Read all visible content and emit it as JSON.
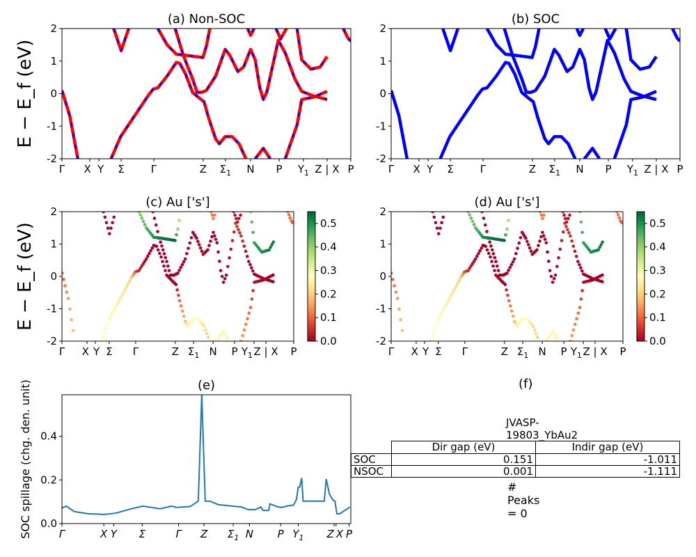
{
  "colors": {
    "nonsoc_line": "#ff0000",
    "nonsoc_dash": "#0000ff",
    "soc_line": "#0000ff",
    "spillage_line": "#1f77b4",
    "colormap": "RdYlGn"
  },
  "chart_data": [
    {
      "id": "a",
      "type": "line",
      "title": "(a) Non-SOC",
      "ylabel": "E − E_f (eV)",
      "ylim": [
        -2,
        2
      ],
      "yticks": [
        -2,
        -1,
        0,
        1,
        2
      ],
      "xticks": [
        {
          "k": 0,
          "label": "Γ"
        },
        {
          "k": 0.096,
          "label": "X"
        },
        {
          "k": 0.128,
          "label": "Y"
        },
        {
          "k": 0.205,
          "label": "Σ"
        },
        {
          "k": 0.318,
          "label": "Γ"
        },
        {
          "k": 0.489,
          "label": "Z"
        },
        {
          "k": 0.566,
          "label": "Σ",
          "sub": "1"
        },
        {
          "k": 0.653,
          "label": "N"
        },
        {
          "k": 0.752,
          "label": "P"
        },
        {
          "k": 0.836,
          "label": "Y",
          "sub": "1"
        },
        {
          "k": 0.918,
          "label": "Z | X"
        },
        {
          "k": 1.0,
          "label": "P"
        }
      ]
    },
    {
      "id": "b",
      "type": "line",
      "title": "(b) SOC",
      "ylim": [
        -2,
        2
      ],
      "yticks": [
        -2,
        -1,
        0,
        1,
        2
      ],
      "xticks": [
        {
          "k": 0,
          "label": "Γ"
        },
        {
          "k": 0.096,
          "label": "X"
        },
        {
          "k": 0.128,
          "label": "Y"
        },
        {
          "k": 0.205,
          "label": "Σ"
        },
        {
          "k": 0.318,
          "label": "Γ"
        },
        {
          "k": 0.489,
          "label": "Z"
        },
        {
          "k": 0.566,
          "label": "Σ",
          "sub": "1"
        },
        {
          "k": 0.653,
          "label": "N"
        },
        {
          "k": 0.752,
          "label": "P"
        },
        {
          "k": 0.836,
          "label": "Y",
          "sub": "1"
        },
        {
          "k": 0.918,
          "label": "Z | X"
        },
        {
          "k": 1.0,
          "label": "P"
        }
      ]
    },
    {
      "id": "c",
      "type": "scatter",
      "title": "(c)  Au ['s']",
      "ylabel": "E − E_f (eV)",
      "ylim": [
        -2,
        2
      ],
      "yticks": [
        -2,
        -1,
        0,
        1,
        2
      ],
      "colorbar": {
        "range": [
          0,
          0.55
        ],
        "ticks": [
          0.0,
          0.1,
          0.2,
          0.3,
          0.4,
          0.5
        ]
      },
      "xticks": [
        {
          "k": 0,
          "label": "Γ"
        },
        {
          "k": 0.108,
          "label": "X"
        },
        {
          "k": 0.144,
          "label": "Y"
        },
        {
          "k": 0.204,
          "label": "Σ"
        },
        {
          "k": 0.318,
          "label": "Γ"
        },
        {
          "k": 0.489,
          "label": "Z"
        },
        {
          "k": 0.568,
          "label": "Σ",
          "sub": "1"
        },
        {
          "k": 0.652,
          "label": "N"
        },
        {
          "k": 0.745,
          "label": "P"
        },
        {
          "k": 0.829,
          "label": "Y",
          "sub": "1"
        },
        {
          "k": 0.88,
          "label": "Z | X"
        },
        {
          "k": 1.0,
          "label": "P"
        }
      ]
    },
    {
      "id": "d",
      "type": "scatter",
      "title": "(d) Au ['s']",
      "ylim": [
        -2,
        2
      ],
      "yticks": [
        -2,
        -1,
        0,
        1,
        2
      ],
      "colorbar": {
        "range": [
          0,
          0.55
        ],
        "ticks": [
          0.0,
          0.1,
          0.2,
          0.3,
          0.4,
          0.5
        ]
      },
      "xticks": [
        {
          "k": 0,
          "label": "Γ"
        },
        {
          "k": 0.108,
          "label": "X"
        },
        {
          "k": 0.144,
          "label": "Y"
        },
        {
          "k": 0.204,
          "label": "Σ"
        },
        {
          "k": 0.318,
          "label": "Γ"
        },
        {
          "k": 0.489,
          "label": "Z"
        },
        {
          "k": 0.568,
          "label": "Σ",
          "sub": "1"
        },
        {
          "k": 0.652,
          "label": "N"
        },
        {
          "k": 0.745,
          "label": "P"
        },
        {
          "k": 0.829,
          "label": "Y",
          "sub": "1"
        },
        {
          "k": 0.88,
          "label": "Z | X"
        },
        {
          "k": 1.0,
          "label": "P"
        }
      ]
    },
    {
      "id": "e",
      "type": "line",
      "title": "(e)",
      "ylabel": "SOC spillage (chg. den. unit)",
      "ylim": [
        0,
        0.59
      ],
      "yticks": [
        0.0,
        0.2,
        0.4
      ],
      "xticks": [
        {
          "k": 0,
          "label": "Γ"
        },
        {
          "k": 0.145,
          "label": "X"
        },
        {
          "k": 0.179,
          "label": "Y"
        },
        {
          "k": 0.278,
          "label": "Σ"
        },
        {
          "k": 0.404,
          "label": "Γ"
        },
        {
          "k": 0.492,
          "label": "Z"
        },
        {
          "k": 0.593,
          "label": "Σ",
          "sub": "1"
        },
        {
          "k": 0.649,
          "label": "N"
        },
        {
          "k": 0.757,
          "label": "P"
        },
        {
          "k": 0.818,
          "label": "Y",
          "sub": "1"
        },
        {
          "k": 0.942,
          "label": "Z"
        },
        {
          "k": 0.949,
          "label": "X"
        },
        {
          "k": 0.994,
          "label": "P"
        }
      ],
      "k": [
        0,
        0.014,
        0.043,
        0.091,
        0.147,
        0.187,
        0.235,
        0.28,
        0.34,
        0.38,
        0.396,
        0.444,
        0.472,
        0.484,
        0.496,
        0.512,
        0.541,
        0.589,
        0.621,
        0.645,
        0.669,
        0.689,
        0.696,
        0.716,
        0.72,
        0.749,
        0.761,
        0.778,
        0.802,
        0.812,
        0.818,
        0.823,
        0.83,
        0.835,
        0.908,
        0.915,
        0.926,
        0.938,
        0.945,
        0.952,
        0.962,
        0.997
      ],
      "values": [
        0.071,
        0.08,
        0.055,
        0.045,
        0.042,
        0.048,
        0.066,
        0.08,
        0.068,
        0.08,
        0.074,
        0.078,
        0.103,
        0.59,
        0.103,
        0.103,
        0.087,
        0.08,
        0.076,
        0.064,
        0.064,
        0.076,
        0.06,
        0.06,
        0.09,
        0.076,
        0.074,
        0.08,
        0.085,
        0.111,
        0.167,
        0.167,
        0.209,
        0.103,
        0.103,
        0.204,
        0.135,
        0.108,
        0.103,
        0.045,
        0.045,
        0.076
      ]
    }
  ],
  "bands": [
    {
      "k": [
        0,
        0.027,
        0.055
      ],
      "E": [
        0.1,
        -0.68,
        -2
      ],
      "w": [
        0.08,
        0.15,
        0.2
      ]
    },
    {
      "k": [
        0.17,
        0.203,
        0.3,
        0.316,
        0.332,
        0.364,
        0.396,
        0.408,
        0.428,
        0.452,
        0.476,
        0.492,
        0.508,
        0.532,
        0.545,
        0.565,
        0.589,
        0.613,
        0.637
      ],
      "E": [
        -2,
        -1.32,
        -0.04,
        0.14,
        0.18,
        0.54,
        0.96,
        0.93,
        0.6,
        0.04,
        -0.14,
        -0.25,
        -0.75,
        -1.39,
        -1.54,
        -1.32,
        -1.32,
        -1.54,
        -2
      ],
      "w": [
        0.27,
        0.27,
        0.2,
        0.1,
        0.04,
        0,
        0,
        0,
        0,
        0,
        0,
        0,
        0.1,
        0.18,
        0.26,
        0.27,
        0.27,
        0.22,
        0.2
      ]
    },
    {
      "k": [
        0.669,
        0.697,
        0.721
      ],
      "E": [
        -2,
        -1.68,
        -2
      ],
      "w": [
        0.25,
        0.27,
        0.25
      ]
    },
    {
      "k": [
        0.392,
        0.42,
        0.436,
        0.452,
        0.468,
        0.484,
        0.5,
        0.532,
        0.565,
        0.581,
        0.609,
        0.629,
        0.653,
        0.669,
        0.685,
        0.697,
        0.709,
        0.749,
        0.773,
        0.806,
        0.83,
        0.87,
        0.918
      ],
      "E": [
        2,
        1.18,
        0.82,
        0.46,
        0.04,
        0.04,
        0.1,
        0.54,
        1.36,
        1.18,
        0.68,
        0.82,
        1.36,
        1.04,
        0.18,
        -0.18,
        0.04,
        1.64,
        1.25,
        0.46,
        0.07,
        -0.07,
        -0.18
      ],
      "w": [
        0,
        0,
        0,
        0,
        0,
        0,
        0,
        0,
        0,
        0,
        0,
        0,
        0,
        0,
        0,
        0,
        0,
        0.05,
        0.05,
        0,
        0,
        0,
        0
      ]
    },
    {
      "k": [
        0.773,
        0.814,
        0.83,
        0.87,
        0.918
      ],
      "E": [
        -2,
        -0.96,
        -0.18,
        -0.11,
        0.07
      ],
      "w": [
        0.15,
        0.1,
        0.02,
        0,
        0
      ]
    },
    {
      "k": [
        0.332,
        0.364,
        0.396,
        0.428,
        0.488,
        0.5,
        0.512
      ],
      "E": [
        2,
        1.5,
        1.21,
        1.18,
        1.11,
        1.46,
        2
      ],
      "w": [
        0.42,
        0.45,
        0.5,
        0.53,
        0.55,
        0.4,
        0.35
      ]
    },
    {
      "k": [
        0.179,
        0.205,
        0.231
      ],
      "E": [
        2,
        1.32,
        2
      ],
      "w": [
        0,
        0,
        0
      ]
    },
    {
      "k": [
        0.643,
        0.653,
        0.665
      ],
      "E": [
        2,
        1.79,
        2
      ],
      "w": [
        0.12,
        0.12,
        0.12
      ]
    },
    {
      "k": [
        0.741,
        0.757,
        0.777
      ],
      "E": [
        2,
        1.68,
        2
      ],
      "w": [
        0.02,
        0.02,
        0.02
      ]
    },
    {
      "k": [
        0.814,
        0.83,
        0.862,
        0.894,
        0.918
      ],
      "E": [
        2,
        1.04,
        0.75,
        0.82,
        1.14
      ],
      "w": [
        0.42,
        0.48,
        0.5,
        0.52,
        0.53
      ]
    },
    {
      "k": [
        0.974,
        0.99,
        1.0
      ],
      "E": [
        2,
        1.71,
        1.61
      ],
      "w": [
        0.12,
        0.1,
        0.1
      ]
    }
  ],
  "table": {
    "title": "JVASP-19803_YbAu2",
    "columns": [
      "Dir gap (eV)",
      "Indir gap (eV)"
    ],
    "rows": [
      {
        "label": "SOC",
        "dir": "0.151",
        "indir": "-1.011"
      },
      {
        "label": "NSOC",
        "dir": "0.001",
        "indir": "-1.111"
      }
    ],
    "footer": "# Peaks = 0",
    "panel_title": "(f)"
  }
}
